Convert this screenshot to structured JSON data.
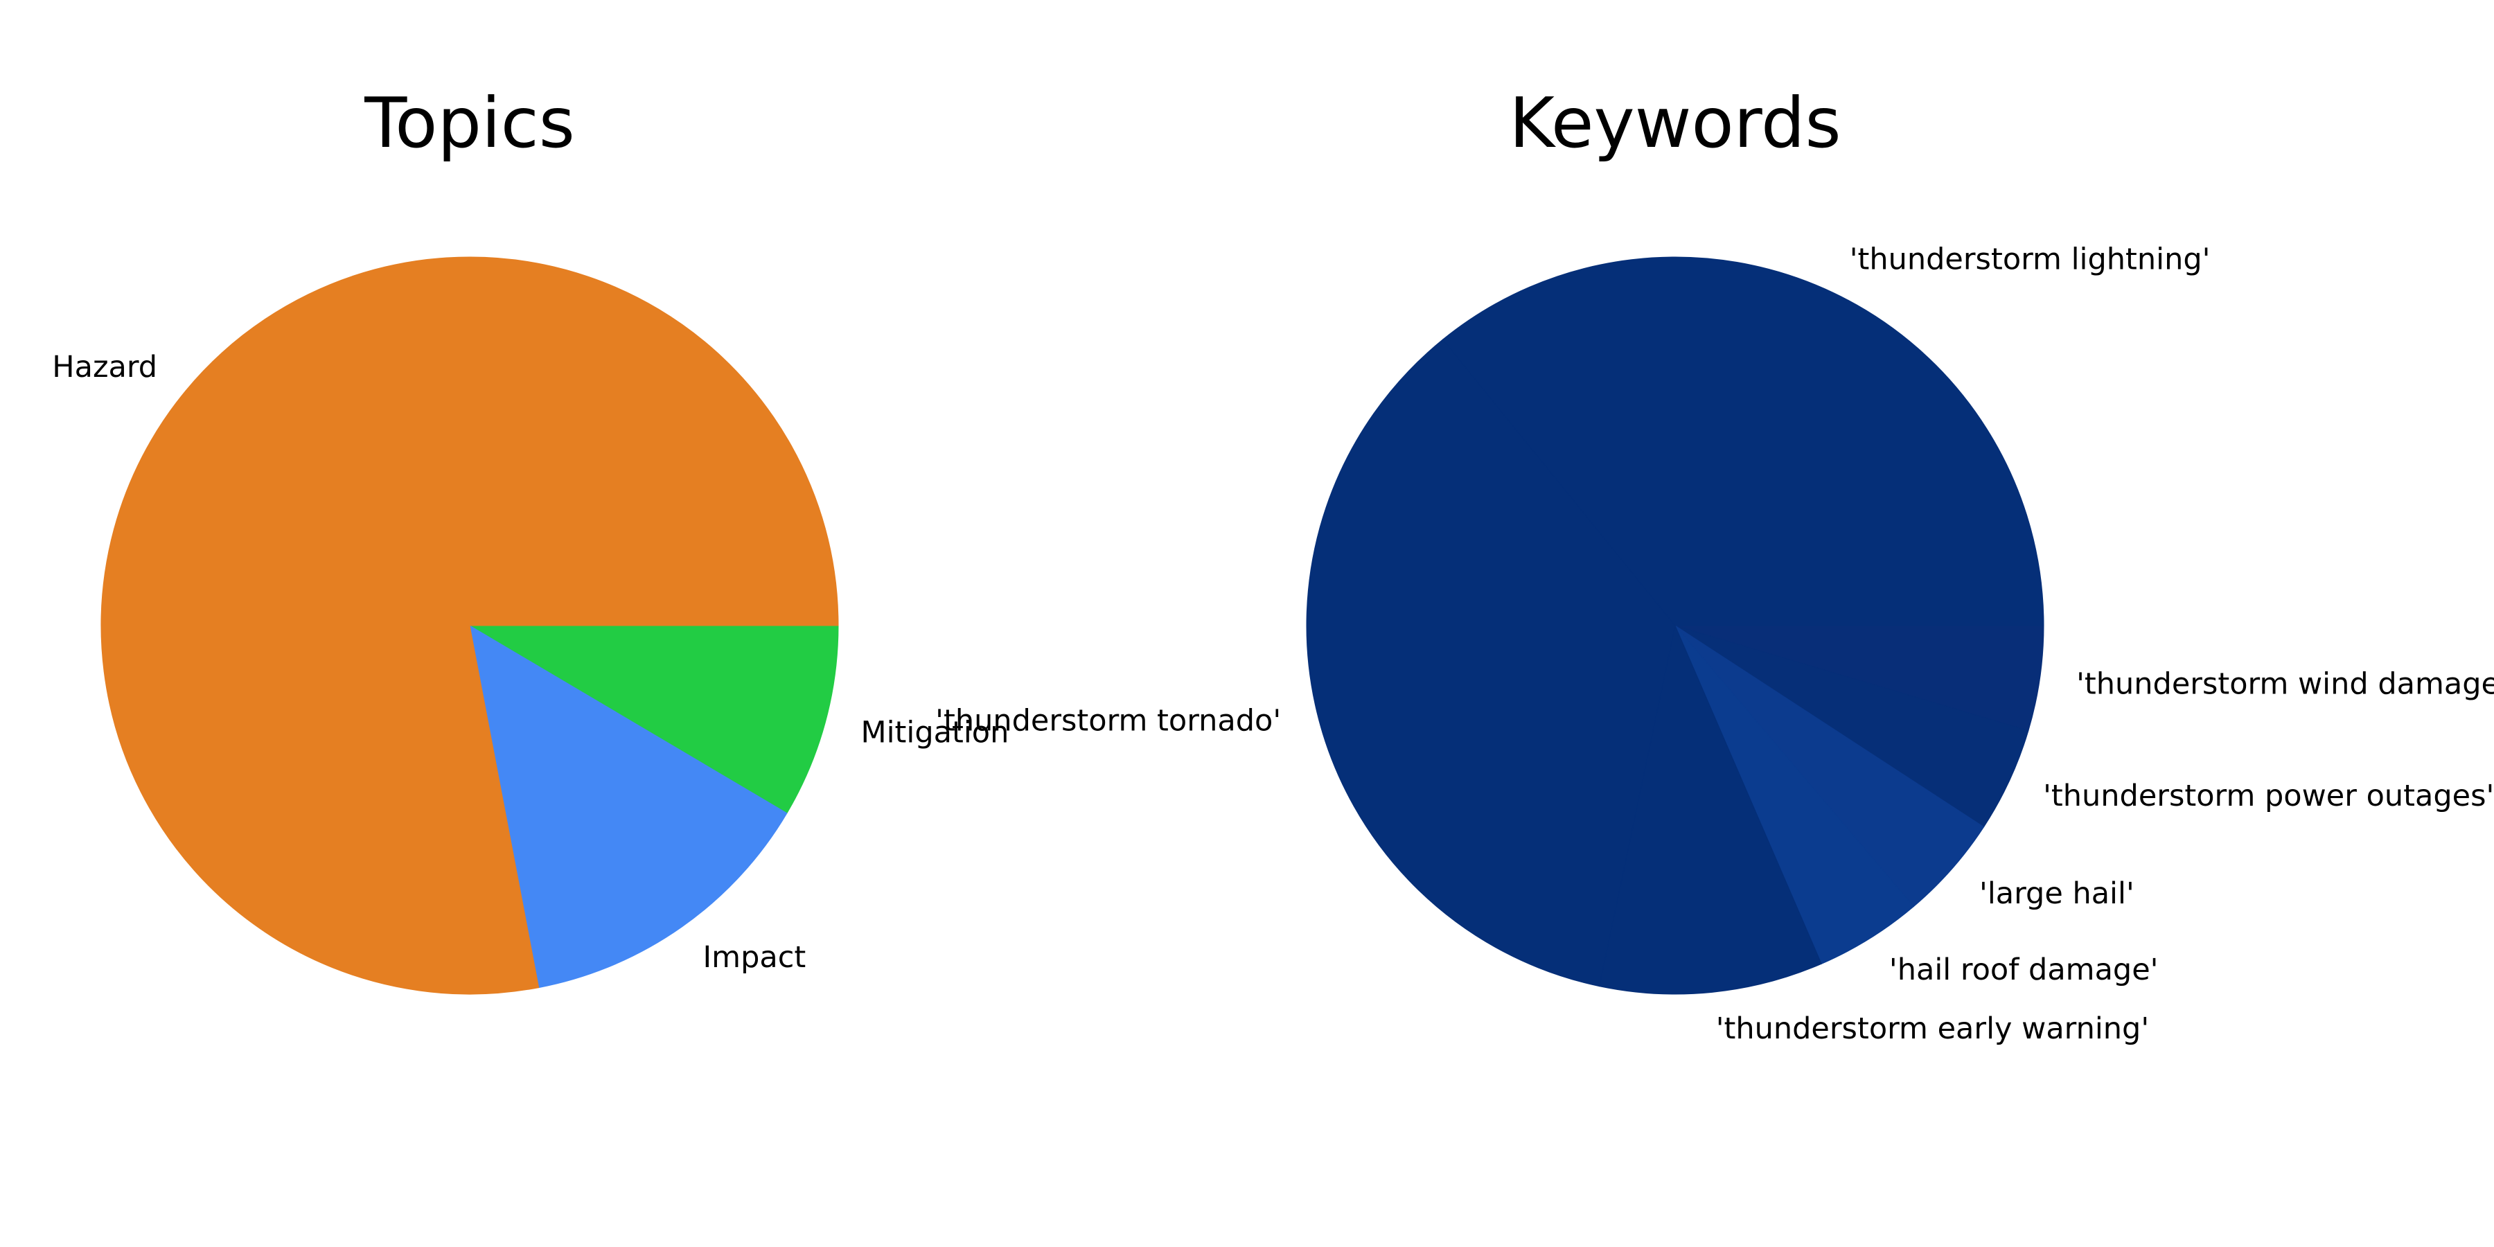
{
  "chart_data": [
    {
      "type": "pie",
      "title": "Topics",
      "start_angle_deg": 0,
      "direction": "clockwise",
      "slices": [
        {
          "label": "Mitigation",
          "value": 8.5,
          "color": "#22cc44"
        },
        {
          "label": "Impact",
          "value": 13.5,
          "color": "#4488f5"
        },
        {
          "label": "Hazard",
          "value": 78.0,
          "color": "#e57f22"
        }
      ]
    },
    {
      "type": "pie",
      "title": "Keywords",
      "start_angle_deg": 0,
      "direction": "clockwise",
      "slices": [
        {
          "label": "'thunderstorm wind damage'",
          "value": 4.6,
          "color": "#082e78"
        },
        {
          "label": "'thunderstorm power outages'",
          "value": 4.6,
          "color": "#062f78"
        },
        {
          "label": "'large hail'",
          "value": 4.6,
          "color": "#0c3b8e"
        },
        {
          "label": "'hail roof damage'",
          "value": 4.7,
          "color": "#0b3c8f"
        },
        {
          "label": "'thunderstorm early warning'",
          "value": 9.8,
          "color": "#052f78"
        },
        {
          "label": "'thunderstorm tornado'",
          "value": 35.85,
          "color": "#052f78"
        },
        {
          "label": "'thunderstorm lightning'",
          "value": 35.85,
          "color": "#052f78"
        }
      ]
    }
  ]
}
